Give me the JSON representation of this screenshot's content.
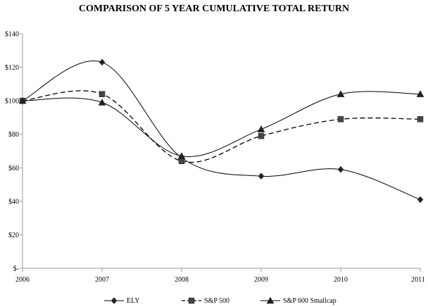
{
  "chart_data": {
    "type": "line",
    "title": "COMPARISON OF 5 YEAR CUMULATIVE TOTAL RETURN",
    "xlabel": "",
    "ylabel": "",
    "x": [
      "2006",
      "2007",
      "2008",
      "2009",
      "2010",
      "2011"
    ],
    "ylim": [
      0,
      140
    ],
    "yticks": [
      0,
      20,
      40,
      60,
      80,
      100,
      120,
      140
    ],
    "ytick_labels": [
      "$-",
      "$20",
      "$40",
      "$60",
      "$80",
      "$100",
      "$120",
      "$140"
    ],
    "grid": false,
    "smooth": true,
    "legend_position": "bottom",
    "series": [
      {
        "name": "ELY",
        "values": [
          100,
          123,
          66,
          55,
          59,
          41
        ],
        "marker": "diamond",
        "dash": "solid",
        "color": "#000000"
      },
      {
        "name": "S&P 500",
        "values": [
          100,
          104,
          64,
          79,
          89,
          89
        ],
        "marker": "square",
        "dash": "dashed",
        "color": "#000000"
      },
      {
        "name": "S&P 600 Smallcap",
        "values": [
          100,
          99,
          67,
          83,
          104,
          104
        ],
        "marker": "triangle",
        "dash": "solid",
        "color": "#000000"
      }
    ],
    "colors": {
      "axis": "#999999",
      "line": "#000000",
      "marker": "#222222",
      "marker_fill_square": "#444444"
    }
  }
}
